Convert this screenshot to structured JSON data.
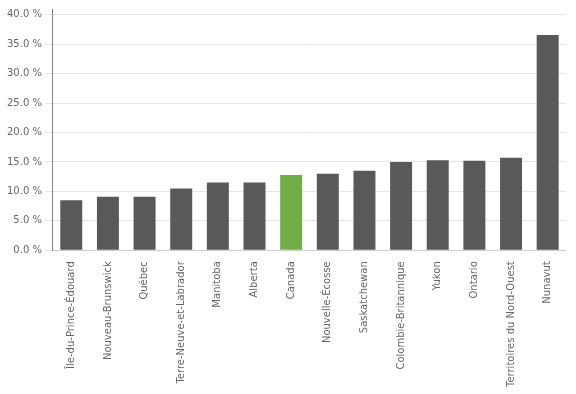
{
  "chart_data": {
    "type": "bar",
    "categories": [
      "Île-du-Prince-Édouard",
      "Nouveau-Brunswick",
      "Québec",
      "Terre-Neuve-et-Labrador",
      "Manitoba",
      "Alberta",
      "Canada",
      "Nouvelle-Écosse",
      "Saskatchewan",
      "Colombie-Britannique",
      "Yukon",
      "Ontario",
      "Territoires du Nord-Ouest",
      "Nunavut"
    ],
    "values": [
      0.085,
      0.091,
      0.091,
      0.105,
      0.115,
      0.115,
      0.128,
      0.13,
      0.135,
      0.15,
      0.153,
      0.152,
      0.157,
      0.366
    ],
    "colors": [
      "#595959",
      "#595959",
      "#595959",
      "#595959",
      "#595959",
      "#595959",
      "#70ad47",
      "#595959",
      "#595959",
      "#595959",
      "#595959",
      "#595959",
      "#595959",
      "#595959"
    ],
    "ylim": [
      0,
      0.41
    ],
    "yticks": [
      {
        "value": 0.0,
        "label": "0.0 %"
      },
      {
        "value": 0.05,
        "label": "5.0 %"
      },
      {
        "value": 0.1,
        "label": "10.0 %"
      },
      {
        "value": 0.15,
        "label": "15.0 %"
      },
      {
        "value": 0.2,
        "label": "20.0 %"
      },
      {
        "value": 0.25,
        "label": "25.0 %"
      },
      {
        "value": 0.3,
        "label": "30.0 %"
      },
      {
        "value": 0.35,
        "label": "35.0 %"
      },
      {
        "value": 0.4,
        "label": "40.0 %"
      }
    ],
    "grid": true
  }
}
